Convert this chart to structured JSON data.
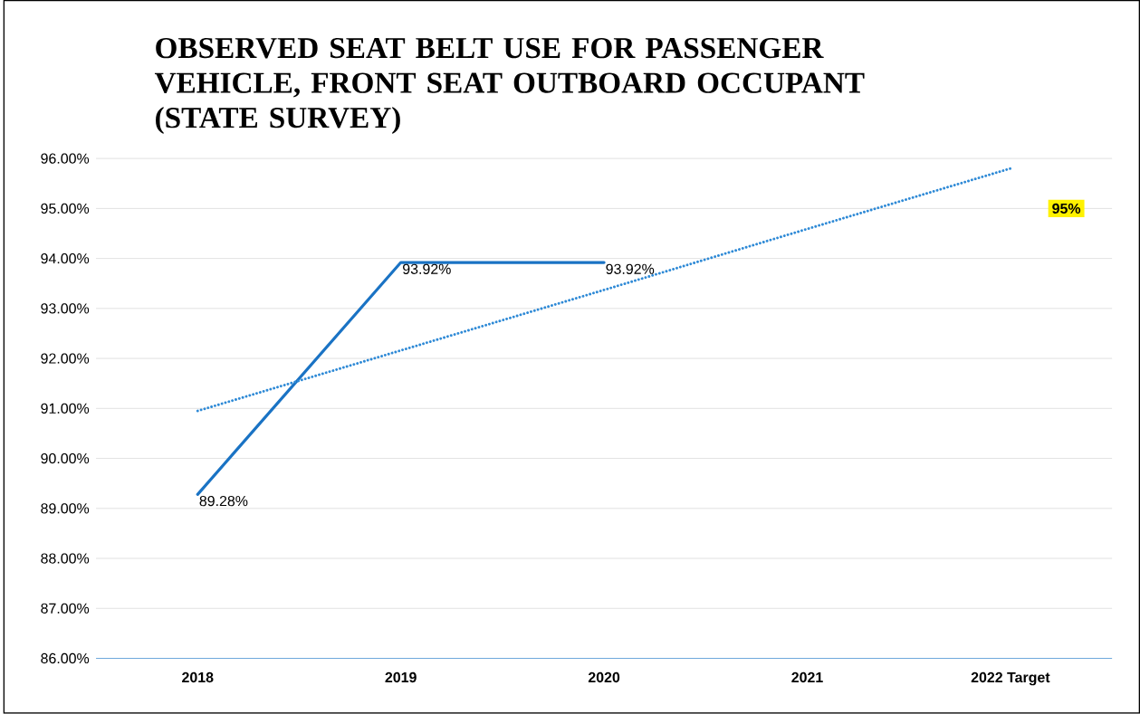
{
  "chart_data": {
    "type": "line",
    "title": "OBSERVED SEAT BELT USE FOR PASSENGER VEHICLE, FRONT SEAT OUTBOARD OCCUPANT (STATE SURVEY)",
    "categories": [
      "2018",
      "2019",
      "2020",
      "2021",
      "2022 Target"
    ],
    "series": [
      {
        "color": "#1a73c4",
        "values": [
          89.28,
          93.92,
          93.92,
          null,
          null
        ],
        "value_labels": [
          "89.28%",
          "93.92%",
          "93.92%",
          null,
          null
        ],
        "line_style": "solid"
      },
      {
        "color": "#2f8ad6",
        "values": [
          90.95,
          92.16,
          93.37,
          94.59,
          95.8
        ],
        "line_style": "dotted"
      }
    ],
    "ylim": [
      86,
      96
    ],
    "yticks": [
      {
        "value": 86,
        "label": "86.00%"
      },
      {
        "value": 87,
        "label": "87.00%"
      },
      {
        "value": 88,
        "label": "88.00%"
      },
      {
        "value": 89,
        "label": "89.00%"
      },
      {
        "value": 90,
        "label": "90.00%"
      },
      {
        "value": 91,
        "label": "91.00%"
      },
      {
        "value": 92,
        "label": "92.00%"
      },
      {
        "value": 93,
        "label": "93.00%"
      },
      {
        "value": 94,
        "label": "94.00%"
      },
      {
        "value": 95,
        "label": "95.00%"
      },
      {
        "value": 96,
        "label": "96.00%"
      }
    ],
    "grid": "y",
    "marker": "none",
    "annotations": [
      "95%"
    ]
  }
}
